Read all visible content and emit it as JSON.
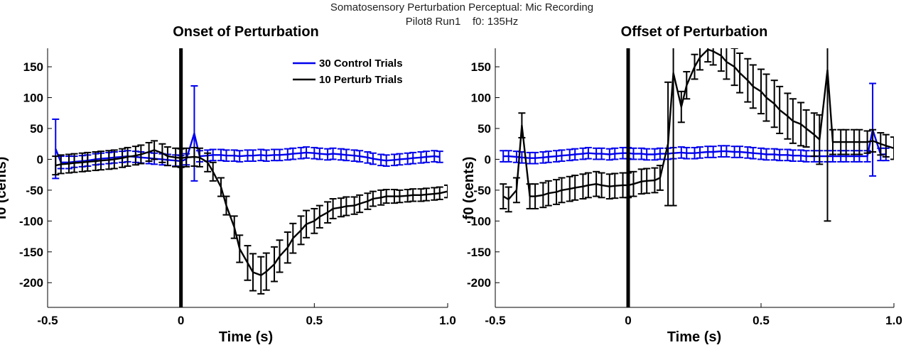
{
  "figure": {
    "suptitle_line1": "Somatosensory Perturbation Perceptual: Mic Recording",
    "suptitle_line2": "Pilot8 Run1    f0: 135Hz"
  },
  "colors": {
    "control": "#0000ee",
    "perturb": "#000000",
    "onset_line": "#000000"
  },
  "chart_data": [
    {
      "type": "line",
      "title": "Onset of Perturbation",
      "xlabel": "Time (s)",
      "ylabel": "f0 (cents)",
      "xlim": [
        -0.5,
        1.0
      ],
      "ylim": [
        -240,
        180
      ],
      "xticks": [
        -0.5,
        0,
        0.5,
        1.0
      ],
      "xtick_labels": [
        "-0.5",
        "0",
        "0.5",
        "1.0"
      ],
      "yticks": [
        -200,
        -150,
        -100,
        -50,
        0,
        50,
        100,
        150
      ],
      "ytick_labels": [
        "-200",
        "-150",
        "-100",
        "-50",
        "0",
        "50",
        "100",
        "150"
      ],
      "vline_x": 0,
      "legend": {
        "position": "top-right",
        "entries": [
          "30 Control Trials",
          "10 Perturb Trials"
        ]
      },
      "series": [
        {
          "name": "30 Control Trials",
          "x": [
            -0.47,
            -0.45,
            -0.42,
            -0.4,
            -0.37,
            -0.35,
            -0.32,
            -0.3,
            -0.27,
            -0.25,
            -0.22,
            -0.2,
            -0.17,
            -0.15,
            -0.12,
            -0.1,
            -0.07,
            -0.05,
            -0.02,
            0,
            0.02,
            0.05,
            0.07,
            0.1,
            0.12,
            0.15,
            0.17,
            0.2,
            0.22,
            0.25,
            0.27,
            0.3,
            0.32,
            0.35,
            0.37,
            0.4,
            0.42,
            0.45,
            0.47,
            0.5,
            0.52,
            0.55,
            0.57,
            0.6,
            0.62,
            0.65,
            0.67,
            0.7,
            0.72,
            0.75,
            0.77,
            0.8,
            0.82,
            0.85,
            0.87,
            0.9,
            0.92,
            0.95,
            0.97
          ],
          "y": [
            17,
            -5,
            -5,
            -4,
            -3,
            -2,
            0,
            1,
            2,
            3,
            4,
            5,
            4,
            3,
            2,
            1,
            0,
            -1,
            -2,
            -3,
            0,
            42,
            5,
            6,
            7,
            7,
            6,
            6,
            5,
            6,
            6,
            7,
            6,
            7,
            7,
            8,
            9,
            10,
            11,
            10,
            9,
            8,
            9,
            8,
            7,
            6,
            5,
            3,
            1,
            -1,
            -2,
            -1,
            0,
            1,
            2,
            3,
            4,
            5,
            4
          ],
          "err": [
            48,
            10,
            10,
            9,
            9,
            9,
            9,
            9,
            9,
            9,
            9,
            9,
            9,
            9,
            9,
            9,
            9,
            9,
            9,
            9,
            9,
            77,
            9,
            9,
            9,
            9,
            9,
            9,
            9,
            9,
            9,
            9,
            9,
            9,
            9,
            9,
            9,
            9,
            9,
            9,
            9,
            9,
            9,
            9,
            9,
            9,
            9,
            9,
            9,
            9,
            9,
            9,
            9,
            9,
            9,
            9,
            9,
            9,
            9
          ]
        },
        {
          "name": "10 Perturb Trials",
          "x": [
            -0.47,
            -0.45,
            -0.42,
            -0.4,
            -0.37,
            -0.35,
            -0.32,
            -0.3,
            -0.27,
            -0.25,
            -0.22,
            -0.2,
            -0.17,
            -0.15,
            -0.12,
            -0.1,
            -0.07,
            -0.05,
            -0.02,
            0,
            0.02,
            0.05,
            0.07,
            0.1,
            0.12,
            0.15,
            0.17,
            0.2,
            0.22,
            0.25,
            0.27,
            0.3,
            0.32,
            0.35,
            0.37,
            0.4,
            0.42,
            0.45,
            0.47,
            0.5,
            0.52,
            0.55,
            0.57,
            0.6,
            0.62,
            0.65,
            0.67,
            0.7,
            0.72,
            0.75,
            0.77,
            0.8,
            0.82,
            0.85,
            0.87,
            0.9,
            0.92,
            0.95,
            0.97,
            1.0
          ],
          "y": [
            -10,
            -8,
            -7,
            -6,
            -5,
            -4,
            -3,
            -2,
            -1,
            0,
            2,
            4,
            6,
            8,
            12,
            15,
            10,
            5,
            3,
            2,
            3,
            4,
            3,
            -5,
            -20,
            -45,
            -75,
            -110,
            -145,
            -168,
            -183,
            -188,
            -182,
            -170,
            -157,
            -143,
            -128,
            -115,
            -105,
            -100,
            -93,
            -86,
            -80,
            -78,
            -76,
            -75,
            -72,
            -68,
            -64,
            -62,
            -60,
            -60,
            -60,
            -59,
            -58,
            -58,
            -57,
            -56,
            -55,
            -52
          ],
          "err": [
            15,
            15,
            15,
            15,
            15,
            15,
            15,
            15,
            15,
            15,
            15,
            15,
            15,
            15,
            15,
            15,
            15,
            15,
            15,
            15,
            15,
            15,
            15,
            15,
            15,
            15,
            15,
            18,
            22,
            28,
            30,
            30,
            30,
            28,
            26,
            25,
            24,
            23,
            22,
            20,
            18,
            17,
            16,
            15,
            15,
            14,
            14,
            13,
            12,
            12,
            11,
            11,
            10,
            10,
            10,
            10,
            10,
            10,
            10,
            10
          ]
        }
      ]
    },
    {
      "type": "line",
      "title": "Offset of Perturbation",
      "xlabel": "Time (s)",
      "ylabel": "f0 (cents)",
      "xlim": [
        -0.5,
        1.0
      ],
      "ylim": [
        -240,
        180
      ],
      "xticks": [
        -0.5,
        0,
        0.5,
        1.0
      ],
      "xtick_labels": [
        "-0.5",
        "0",
        "0.5",
        "1.0"
      ],
      "yticks": [
        -200,
        -150,
        -100,
        -50,
        0,
        50,
        100,
        150
      ],
      "ytick_labels": [
        "-200",
        "-150",
        "-100",
        "-50",
        "0",
        "50",
        "100",
        "150"
      ],
      "vline_x": 0,
      "series": [
        {
          "name": "30 Control Trials",
          "x": [
            -0.47,
            -0.45,
            -0.42,
            -0.4,
            -0.37,
            -0.35,
            -0.32,
            -0.3,
            -0.27,
            -0.25,
            -0.22,
            -0.2,
            -0.17,
            -0.15,
            -0.12,
            -0.1,
            -0.07,
            -0.05,
            -0.02,
            0,
            0.02,
            0.05,
            0.07,
            0.1,
            0.12,
            0.15,
            0.17,
            0.2,
            0.22,
            0.25,
            0.27,
            0.3,
            0.32,
            0.35,
            0.37,
            0.4,
            0.42,
            0.45,
            0.47,
            0.5,
            0.52,
            0.55,
            0.57,
            0.6,
            0.62,
            0.65,
            0.67,
            0.7,
            0.72,
            0.75,
            0.77,
            0.8,
            0.82,
            0.85,
            0.87,
            0.9,
            0.92,
            0.95,
            0.97
          ],
          "y": [
            5,
            5,
            4,
            3,
            2,
            2,
            3,
            4,
            5,
            6,
            7,
            8,
            9,
            10,
            9,
            9,
            8,
            9,
            10,
            10,
            9,
            9,
            8,
            8,
            9,
            9,
            10,
            11,
            10,
            10,
            11,
            12,
            12,
            13,
            13,
            12,
            12,
            11,
            10,
            9,
            8,
            8,
            7,
            7,
            6,
            6,
            5,
            5,
            5,
            5,
            5,
            5,
            5,
            5,
            5,
            5,
            48,
            8,
            8
          ],
          "err": [
            9,
            9,
            9,
            9,
            9,
            9,
            9,
            9,
            9,
            9,
            9,
            9,
            9,
            9,
            9,
            9,
            9,
            9,
            9,
            9,
            9,
            9,
            9,
            9,
            9,
            9,
            9,
            9,
            9,
            9,
            9,
            9,
            9,
            9,
            9,
            9,
            9,
            9,
            9,
            9,
            9,
            9,
            9,
            9,
            9,
            9,
            9,
            9,
            9,
            9,
            9,
            9,
            9,
            9,
            9,
            9,
            75,
            10,
            10
          ]
        },
        {
          "name": "10 Perturb Trials",
          "x": [
            -0.47,
            -0.45,
            -0.42,
            -0.4,
            -0.37,
            -0.35,
            -0.32,
            -0.3,
            -0.27,
            -0.25,
            -0.22,
            -0.2,
            -0.17,
            -0.15,
            -0.12,
            -0.1,
            -0.07,
            -0.05,
            -0.02,
            0,
            0.02,
            0.05,
            0.07,
            0.1,
            0.12,
            0.15,
            0.17,
            0.2,
            0.22,
            0.25,
            0.27,
            0.3,
            0.32,
            0.35,
            0.37,
            0.4,
            0.42,
            0.45,
            0.47,
            0.5,
            0.52,
            0.55,
            0.57,
            0.6,
            0.62,
            0.65,
            0.67,
            0.7,
            0.72,
            0.75,
            0.77,
            0.8,
            0.82,
            0.85,
            0.87,
            0.9,
            0.92,
            0.95,
            0.97,
            1.0
          ],
          "y": [
            -60,
            -65,
            -50,
            55,
            -60,
            -60,
            -58,
            -55,
            -53,
            -50,
            -48,
            -46,
            -44,
            -42,
            -40,
            -42,
            -44,
            -43,
            -42,
            -42,
            -40,
            -36,
            -35,
            -34,
            -30,
            25,
            140,
            85,
            120,
            150,
            165,
            178,
            175,
            168,
            158,
            150,
            140,
            128,
            118,
            110,
            100,
            90,
            80,
            70,
            62,
            57,
            50,
            40,
            32,
            145,
            28,
            28,
            28,
            28,
            28,
            28,
            30,
            25,
            22,
            18
          ],
          "err": [
            20,
            20,
            20,
            20,
            20,
            20,
            20,
            20,
            20,
            20,
            20,
            20,
            20,
            20,
            20,
            20,
            20,
            20,
            20,
            20,
            20,
            20,
            20,
            20,
            20,
            100,
            215,
            25,
            22,
            20,
            20,
            20,
            22,
            25,
            28,
            30,
            32,
            35,
            35,
            36,
            38,
            38,
            38,
            37,
            36,
            35,
            30,
            35,
            40,
            245,
            20,
            20,
            20,
            20,
            20,
            18,
            18,
            18,
            18,
            18
          ]
        }
      ]
    }
  ]
}
